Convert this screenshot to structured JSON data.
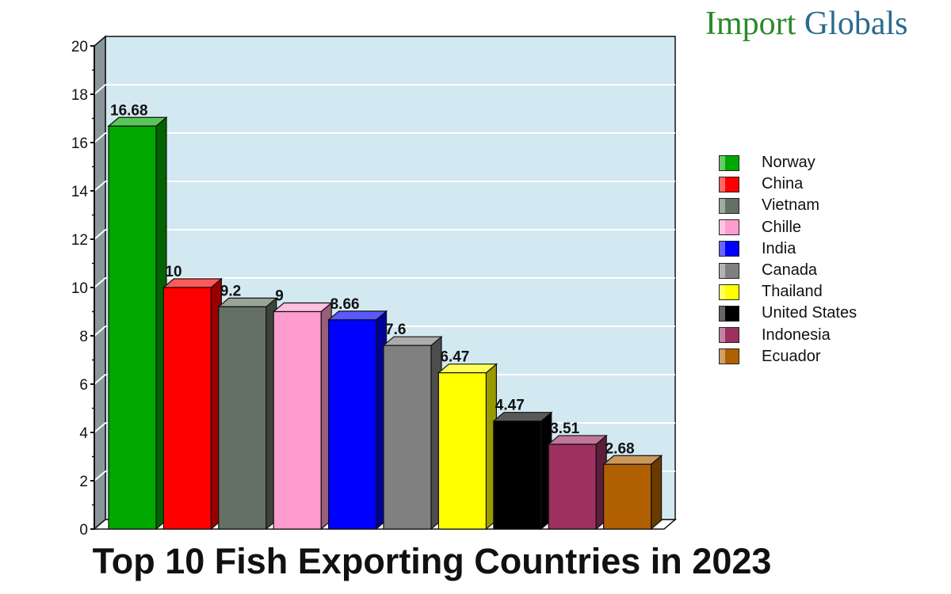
{
  "logo": {
    "text_a": "Import ",
    "text_b": "Globals"
  },
  "chart_data": {
    "type": "bar",
    "title": "Top 10 Fish Exporting Countries in 2023",
    "categories": [
      "Norway",
      "China",
      "Vietnam",
      "Chille",
      "India",
      "Canada",
      "Thailand",
      "United States",
      "Indonesia",
      "Ecuador"
    ],
    "values": [
      16.68,
      10,
      9.2,
      9,
      8.66,
      7.6,
      6.47,
      4.47,
      3.51,
      2.68
    ],
    "value_labels": [
      "16.68",
      "10",
      "9.2",
      "9",
      "8.66",
      "7.6",
      "6.47",
      "4.47",
      "3.51",
      "2.68"
    ],
    "colors": [
      "#00a800",
      "#ff0000",
      "#637063",
      "#ff9ccf",
      "#0000ff",
      "#808080",
      "#ffff00",
      "#000000",
      "#9c3060",
      "#b06000"
    ],
    "ylim": [
      0,
      20
    ],
    "yticks": [
      "0",
      "2",
      "4",
      "6",
      "8",
      "10",
      "12",
      "14",
      "16",
      "18",
      "20"
    ],
    "xlabel": "",
    "ylabel": "",
    "grid": true,
    "legend_position": "right",
    "background": "#d3e9f1"
  }
}
